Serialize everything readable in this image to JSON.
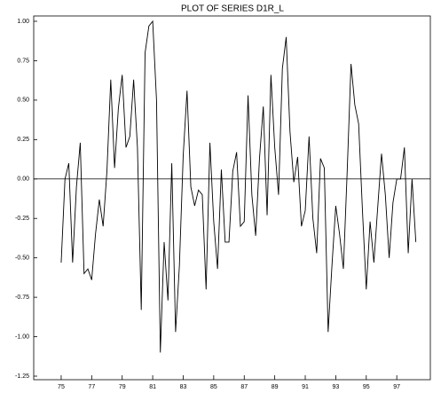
{
  "chart_data": {
    "type": "line",
    "title": "PLOT OF SERIES D1R_L",
    "x": [
      75,
      75.25,
      75.5,
      75.75,
      76,
      76.25,
      76.5,
      76.75,
      77,
      77.25,
      77.5,
      77.75,
      78,
      78.25,
      78.5,
      78.75,
      79,
      79.25,
      79.5,
      79.75,
      80,
      80.25,
      80.5,
      80.75,
      81,
      81.25,
      81.5,
      81.75,
      82,
      82.25,
      82.5,
      82.75,
      83,
      83.25,
      83.5,
      83.75,
      84,
      84.25,
      84.5,
      84.75,
      85,
      85.25,
      85.5,
      85.75,
      86,
      86.25,
      86.5,
      86.75,
      87,
      87.25,
      87.5,
      87.75,
      88,
      88.25,
      88.5,
      88.75,
      89,
      89.25,
      89.5,
      89.75,
      90,
      90.25,
      90.5,
      90.75,
      91,
      91.25,
      91.5,
      91.75,
      92,
      92.25,
      92.5,
      92.75,
      93,
      93.25,
      93.5,
      93.75,
      94,
      94.25,
      94.5,
      94.75,
      95,
      95.25,
      95.5,
      95.75,
      96,
      96.25,
      96.5,
      96.75,
      97,
      97.25,
      97.5,
      97.75,
      98,
      98.25
    ],
    "series": [
      {
        "color": "#000000",
        "values": [
          -0.53,
          0.0,
          0.1,
          -0.53,
          -0.05,
          0.23,
          -0.6,
          -0.57,
          -0.64,
          -0.35,
          -0.13,
          -0.3,
          0.05,
          0.63,
          0.07,
          0.45,
          0.66,
          0.2,
          0.27,
          0.63,
          0.2,
          -0.83,
          0.8,
          0.97,
          1.0,
          0.5,
          -1.1,
          -0.4,
          -0.77,
          0.1,
          -0.97,
          -0.55,
          0.15,
          0.56,
          -0.05,
          -0.17,
          -0.07,
          -0.1,
          -0.7,
          0.23,
          -0.27,
          -0.57,
          0.06,
          -0.4,
          -0.4,
          0.05,
          0.17,
          -0.3,
          -0.27,
          0.53,
          -0.1,
          -0.36,
          0.13,
          0.46,
          -0.23,
          0.66,
          0.2,
          -0.1,
          0.7,
          0.9,
          0.3,
          -0.02,
          0.14,
          -0.3,
          -0.2,
          0.27,
          -0.25,
          -0.47,
          0.13,
          0.07,
          -0.97,
          -0.55,
          -0.17,
          -0.35,
          -0.57,
          0.05,
          0.73,
          0.47,
          0.35,
          -0.2,
          -0.7,
          -0.27,
          -0.53,
          -0.18,
          0.16,
          -0.1,
          -0.5,
          -0.15,
          0.0,
          0.0,
          0.2,
          -0.47,
          0.0,
          -0.4
        ]
      }
    ],
    "xlim": [
      73.2,
      99.2
    ],
    "xticks": [
      75,
      77,
      79,
      81,
      83,
      85,
      87,
      89,
      91,
      93,
      95,
      97
    ],
    "ylim": [
      -1.25,
      1.0
    ],
    "yticks": [
      {
        "value": -1.25,
        "label": "-1.25"
      },
      {
        "value": -1,
        "label": "-1.00"
      },
      -0.75,
      {
        "value": -0.5,
        "label": "-0.50"
      },
      -0.25,
      {
        "value": 0,
        "label": "0.00"
      },
      0.25,
      {
        "value": 0.5,
        "label": "0.50"
      },
      0.75,
      {
        "value": 1,
        "label": "1.00"
      }
    ],
    "zero_line": true
  }
}
